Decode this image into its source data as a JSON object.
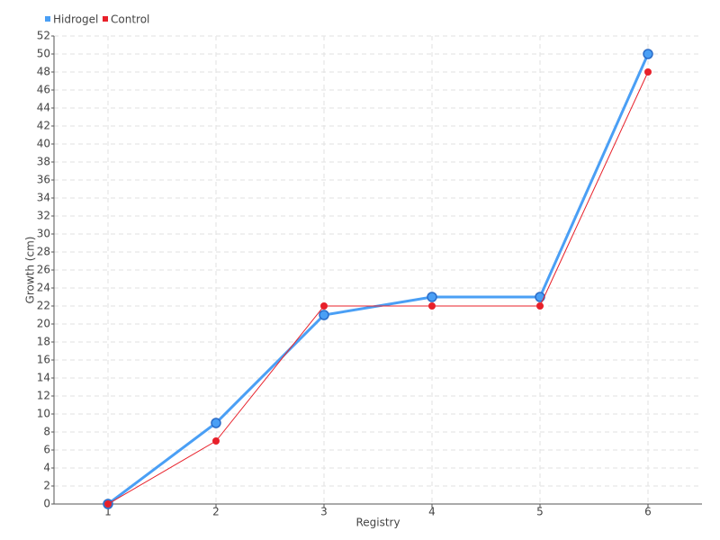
{
  "chart_data": {
    "type": "line",
    "x_label": "Registry",
    "y_label": "Growth (cm)",
    "categories": [
      "1",
      "2",
      "3",
      "4",
      "5",
      "6"
    ],
    "series": [
      {
        "name": "Hidrogel",
        "color": "#4a9ff5",
        "values": [
          0,
          9,
          21,
          23,
          23,
          50
        ]
      },
      {
        "name": "Control",
        "color": "#e8202a",
        "values": [
          0,
          7,
          22,
          22,
          22,
          48
        ]
      }
    ],
    "ylim": [
      0,
      52
    ],
    "yticks": [
      0,
      2,
      4,
      6,
      8,
      10,
      12,
      14,
      16,
      18,
      20,
      22,
      24,
      26,
      28,
      30,
      32,
      34,
      36,
      38,
      40,
      42,
      44,
      46,
      48,
      50,
      52
    ],
    "grid": true,
    "legend": "top-left"
  }
}
